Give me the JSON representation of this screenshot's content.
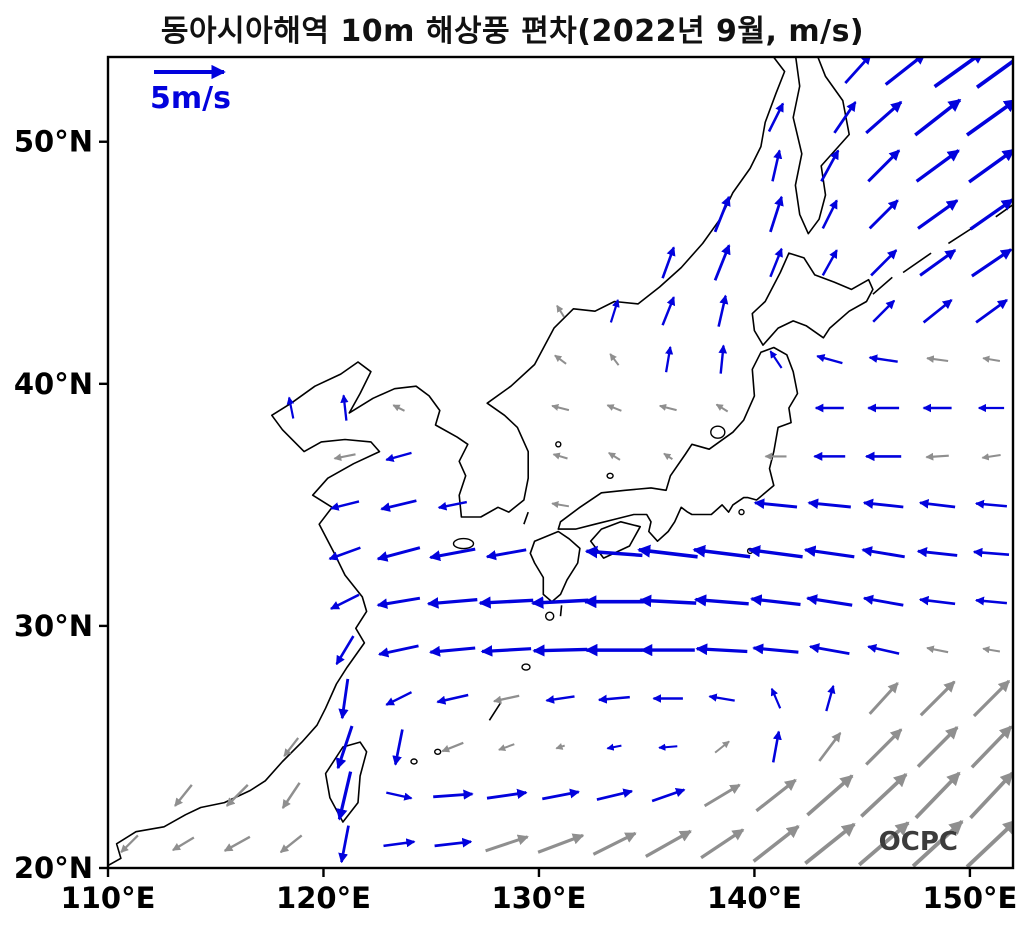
{
  "title": "동아시아해역 10m 해상풍 편차(2022년 9월, m/s)",
  "watermark": "OCPC",
  "legend": {
    "label": "5m/s",
    "speed_m_s": 5
  },
  "axes": {
    "lon_range": [
      110,
      152
    ],
    "lat_range": [
      20,
      53.5
    ],
    "x_ticks": [
      {
        "lon": 110,
        "label": "110°E"
      },
      {
        "lon": 120,
        "label": "120°E"
      },
      {
        "lon": 130,
        "label": "130°E"
      },
      {
        "lon": 140,
        "label": "140°E"
      },
      {
        "lon": 150,
        "label": "150°E"
      }
    ],
    "y_ticks": [
      {
        "lat": 20,
        "label": "20°N"
      },
      {
        "lat": 30,
        "label": "30°N"
      },
      {
        "lat": 40,
        "label": "40°N"
      },
      {
        "lat": 50,
        "label": "50°N"
      }
    ]
  },
  "chart_data": {
    "type": "quiver_map",
    "title": "동아시아해역 10m 해상풍 편차(2022년 9월, m/s)",
    "units": "m/s",
    "reference_speed": 5,
    "region": {
      "lon": [
        110,
        152
      ],
      "lat": [
        20,
        53.5
      ]
    },
    "colors": {
      "significant_blue": "#0202dd",
      "nonsignificant_gray": "#8f8f8f"
    },
    "vector_format": [
      "lon",
      "lat",
      "u_m_s",
      "v_m_s",
      "color(b=blue,g=gray)"
    ],
    "vectors": [
      [
        111,
        21,
        -1.2,
        -1.2,
        "g"
      ],
      [
        113.5,
        21,
        -1.5,
        -0.9,
        "g"
      ],
      [
        116,
        21,
        -1.8,
        -1.0,
        "g"
      ],
      [
        118.5,
        21,
        -1.5,
        -1.2,
        "g"
      ],
      [
        121,
        21,
        -0.5,
        -2.6,
        "b"
      ],
      [
        123.5,
        21,
        2.2,
        0.3,
        "b"
      ],
      [
        126,
        21,
        2.6,
        0.3,
        "b"
      ],
      [
        128.5,
        21,
        3.0,
        1.0,
        "g"
      ],
      [
        131,
        21,
        3.2,
        1.2,
        "g"
      ],
      [
        133.5,
        21,
        3.0,
        1.5,
        "g"
      ],
      [
        136,
        21,
        3.2,
        1.8,
        "g"
      ],
      [
        138.5,
        21,
        3.0,
        2.0,
        "g"
      ],
      [
        141,
        21,
        3.2,
        2.5,
        "g"
      ],
      [
        143.5,
        21,
        3.5,
        2.8,
        "g"
      ],
      [
        146,
        21,
        3.5,
        3.0,
        "g"
      ],
      [
        148.5,
        21,
        3.5,
        3.2,
        "g"
      ],
      [
        151,
        21,
        3.5,
        3.3,
        "g"
      ],
      [
        113.5,
        23,
        -1.2,
        -1.5,
        "g"
      ],
      [
        116,
        23,
        -1.5,
        -1.5,
        "g"
      ],
      [
        118.5,
        23,
        -1.2,
        -1.8,
        "g"
      ],
      [
        121,
        23,
        -0.8,
        -3.4,
        "b"
      ],
      [
        123.5,
        23,
        1.8,
        -0.4,
        "b"
      ],
      [
        126,
        23,
        2.8,
        0.2,
        "b"
      ],
      [
        128.5,
        23,
        2.8,
        0.4,
        "b"
      ],
      [
        131,
        23,
        2.6,
        0.5,
        "b"
      ],
      [
        133.5,
        23,
        2.5,
        0.6,
        "b"
      ],
      [
        136,
        23,
        2.3,
        0.8,
        "b"
      ],
      [
        138.5,
        23,
        2.5,
        1.5,
        "g"
      ],
      [
        141,
        23,
        2.8,
        2.2,
        "g"
      ],
      [
        143.5,
        23,
        3.2,
        2.8,
        "g"
      ],
      [
        146,
        23,
        3.2,
        3.0,
        "g"
      ],
      [
        148.5,
        23,
        3.1,
        3.2,
        "g"
      ],
      [
        151,
        23,
        3.0,
        3.2,
        "g"
      ],
      [
        118.5,
        25,
        -1.0,
        -1.3,
        "g"
      ],
      [
        121,
        25,
        -1.0,
        -3.0,
        "b"
      ],
      [
        123.5,
        25,
        -0.5,
        -2.5,
        "b"
      ],
      [
        126,
        25,
        -1.5,
        -0.6,
        "g"
      ],
      [
        128.5,
        25,
        -1.1,
        -0.4,
        "g"
      ],
      [
        131,
        25,
        -0.6,
        -0.2,
        "g"
      ],
      [
        133.5,
        25,
        -1.0,
        -0.2,
        "b"
      ],
      [
        136,
        25,
        -1.3,
        -0.1,
        "b"
      ],
      [
        138.5,
        25,
        1.0,
        0.8,
        "g"
      ],
      [
        141,
        25,
        0.4,
        2.2,
        "b"
      ],
      [
        143.5,
        25,
        1.5,
        2.0,
        "g"
      ],
      [
        146,
        25,
        2.5,
        2.5,
        "g"
      ],
      [
        148.5,
        25,
        2.8,
        2.8,
        "g"
      ],
      [
        151,
        25,
        2.8,
        2.9,
        "g"
      ],
      [
        121,
        27,
        -0.4,
        -2.8,
        "b"
      ],
      [
        123.5,
        27,
        -1.8,
        -0.9,
        "b"
      ],
      [
        126,
        27,
        -2.2,
        -0.5,
        "b"
      ],
      [
        128.5,
        27,
        -1.8,
        -0.4,
        "g"
      ],
      [
        131,
        27,
        -2.0,
        -0.3,
        "b"
      ],
      [
        133.5,
        27,
        -2.2,
        -0.2,
        "b"
      ],
      [
        136,
        27,
        -2.1,
        0.0,
        "b"
      ],
      [
        138.5,
        27,
        -1.8,
        0.3,
        "b"
      ],
      [
        141,
        27,
        -0.6,
        1.4,
        "b"
      ],
      [
        143.5,
        27,
        0.5,
        1.8,
        "b"
      ],
      [
        146,
        27,
        2.0,
        2.2,
        "g"
      ],
      [
        148.5,
        27,
        2.4,
        2.4,
        "g"
      ],
      [
        151,
        27,
        2.5,
        2.5,
        "g"
      ],
      [
        121,
        29,
        -1.2,
        -2.0,
        "b"
      ],
      [
        123.5,
        29,
        -2.8,
        -0.6,
        "b"
      ],
      [
        126,
        29,
        -3.2,
        -0.3,
        "b"
      ],
      [
        128.5,
        29,
        -3.5,
        -0.2,
        "b"
      ],
      [
        131,
        29,
        -3.8,
        -0.1,
        "b"
      ],
      [
        133.5,
        29,
        -4.0,
        0.0,
        "b"
      ],
      [
        136,
        29,
        -3.8,
        0.0,
        "b"
      ],
      [
        138.5,
        29,
        -3.6,
        0.2,
        "b"
      ],
      [
        141,
        29,
        -3.2,
        0.3,
        "b"
      ],
      [
        143.5,
        29,
        -2.8,
        0.5,
        "b"
      ],
      [
        146,
        29,
        -2.2,
        0.5,
        "b"
      ],
      [
        148.5,
        29,
        -1.5,
        0.3,
        "g"
      ],
      [
        151,
        29,
        -1.2,
        0.2,
        "g"
      ],
      [
        121,
        31,
        -2.0,
        -1.0,
        "b"
      ],
      [
        123.5,
        31,
        -3.0,
        -0.5,
        "b"
      ],
      [
        126,
        31,
        -3.5,
        -0.3,
        "b"
      ],
      [
        128.5,
        31,
        -3.8,
        -0.2,
        "b"
      ],
      [
        131,
        31,
        -4.0,
        -0.2,
        "b"
      ],
      [
        133.5,
        31,
        -4.2,
        0.0,
        "b"
      ],
      [
        136,
        31,
        -4.0,
        0.2,
        "b"
      ],
      [
        138.5,
        31,
        -3.8,
        0.3,
        "b"
      ],
      [
        141,
        31,
        -3.5,
        0.4,
        "b"
      ],
      [
        143.5,
        31,
        -3.2,
        0.5,
        "b"
      ],
      [
        146,
        31,
        -2.8,
        0.5,
        "b"
      ],
      [
        148.5,
        31,
        -2.5,
        0.3,
        "b"
      ],
      [
        151,
        31,
        -2.2,
        0.2,
        "b"
      ],
      [
        121,
        33,
        -2.2,
        -0.8,
        "b"
      ],
      [
        123.5,
        33,
        -3.0,
        -0.8,
        "b"
      ],
      [
        126,
        33,
        -3.2,
        -0.6,
        "b"
      ],
      [
        128.5,
        33,
        -2.8,
        -0.5,
        "b"
      ],
      [
        133.5,
        33,
        -4.0,
        0.3,
        "b"
      ],
      [
        136,
        33,
        -4.2,
        0.5,
        "b"
      ],
      [
        138.5,
        33,
        -4.0,
        0.5,
        "b"
      ],
      [
        141,
        33,
        -3.8,
        0.5,
        "b"
      ],
      [
        143.5,
        33,
        -3.5,
        0.5,
        "b"
      ],
      [
        146,
        33,
        -3.0,
        0.5,
        "b"
      ],
      [
        148.5,
        33,
        -2.8,
        0.3,
        "b"
      ],
      [
        151,
        33,
        -2.5,
        0.2,
        "b"
      ],
      [
        121,
        35,
        -2.0,
        -0.5,
        "b"
      ],
      [
        123.5,
        35,
        -2.5,
        -0.6,
        "b"
      ],
      [
        126,
        35,
        -2.0,
        -0.4,
        "b"
      ],
      [
        131,
        35,
        -1.2,
        0.2,
        "g"
      ],
      [
        141,
        35,
        -3.0,
        0.3,
        "b"
      ],
      [
        143.5,
        35,
        -3.0,
        0.3,
        "b"
      ],
      [
        146,
        35,
        -2.8,
        0.3,
        "b"
      ],
      [
        148.5,
        35,
        -2.5,
        0.3,
        "b"
      ],
      [
        151,
        35,
        -2.2,
        0.2,
        "b"
      ],
      [
        121,
        37,
        -1.5,
        -0.3,
        "g"
      ],
      [
        123.5,
        37,
        -1.8,
        -0.5,
        "b"
      ],
      [
        131,
        37,
        -1.0,
        0.3,
        "g"
      ],
      [
        133.5,
        37,
        -0.8,
        0.5,
        "g"
      ],
      [
        136,
        37,
        -0.6,
        0.4,
        "g"
      ],
      [
        141,
        37,
        -1.5,
        0.0,
        "g"
      ],
      [
        143.5,
        37,
        -2.2,
        0.0,
        "b"
      ],
      [
        146,
        37,
        -2.5,
        0.0,
        "b"
      ],
      [
        148.5,
        37,
        -1.6,
        -0.1,
        "g"
      ],
      [
        151,
        37,
        -1.3,
        -0.2,
        "g"
      ],
      [
        118.5,
        39,
        -0.3,
        1.5,
        "b"
      ],
      [
        121,
        39,
        -0.2,
        1.8,
        "b"
      ],
      [
        123.5,
        39,
        -0.8,
        0.4,
        "g"
      ],
      [
        131,
        39,
        -1.2,
        0.3,
        "g"
      ],
      [
        133.5,
        39,
        -1.0,
        0.4,
        "g"
      ],
      [
        136,
        39,
        -1.2,
        0.3,
        "g"
      ],
      [
        138.5,
        39,
        -0.8,
        0.5,
        "g"
      ],
      [
        143.5,
        39,
        -2.0,
        0.0,
        "b"
      ],
      [
        146,
        39,
        -2.2,
        0.0,
        "b"
      ],
      [
        148.5,
        39,
        -2.0,
        0.0,
        "b"
      ],
      [
        151,
        39,
        -1.8,
        0.0,
        "b"
      ],
      [
        131,
        41,
        -0.8,
        0.6,
        "g"
      ],
      [
        133.5,
        41,
        -0.6,
        0.8,
        "g"
      ],
      [
        136,
        41,
        0.3,
        1.8,
        "b"
      ],
      [
        138.5,
        41,
        0.2,
        2.0,
        "b"
      ],
      [
        141,
        41,
        -0.8,
        1.2,
        "b"
      ],
      [
        143.5,
        41,
        -1.8,
        0.5,
        "b"
      ],
      [
        146,
        41,
        -2.0,
        0.3,
        "b"
      ],
      [
        148.5,
        41,
        -1.5,
        0.2,
        "g"
      ],
      [
        151,
        41,
        -1.2,
        0.2,
        "g"
      ],
      [
        131,
        43,
        -0.5,
        0.8,
        "g"
      ],
      [
        133.5,
        43,
        0.5,
        1.6,
        "b"
      ],
      [
        136,
        43,
        0.8,
        2.0,
        "b"
      ],
      [
        138.5,
        43,
        0.5,
        2.2,
        "b"
      ],
      [
        146,
        43,
        1.5,
        1.5,
        "b"
      ],
      [
        148.5,
        43,
        2.0,
        1.6,
        "b"
      ],
      [
        151,
        43,
        2.2,
        1.6,
        "b"
      ],
      [
        136,
        45,
        0.8,
        2.2,
        "b"
      ],
      [
        138.5,
        45,
        1.0,
        2.5,
        "b"
      ],
      [
        141,
        45,
        0.8,
        2.0,
        "b"
      ],
      [
        143.5,
        45,
        1.0,
        1.8,
        "b"
      ],
      [
        146,
        45,
        1.8,
        1.8,
        "b"
      ],
      [
        148.5,
        45,
        2.5,
        1.8,
        "b"
      ],
      [
        151,
        45,
        2.8,
        1.9,
        "b"
      ],
      [
        138.5,
        47,
        1.0,
        2.5,
        "b"
      ],
      [
        141,
        47,
        0.8,
        2.5,
        "b"
      ],
      [
        143.5,
        47,
        1.0,
        2.0,
        "b"
      ],
      [
        146,
        47,
        2.0,
        2.0,
        "b"
      ],
      [
        148.5,
        47,
        2.8,
        2.0,
        "b"
      ],
      [
        151,
        47,
        3.0,
        2.1,
        "b"
      ],
      [
        141,
        49,
        0.5,
        2.2,
        "b"
      ],
      [
        143.5,
        49,
        1.2,
        2.2,
        "b"
      ],
      [
        146,
        49,
        2.2,
        2.2,
        "b"
      ],
      [
        148.5,
        49,
        3.0,
        2.2,
        "b"
      ],
      [
        151,
        49,
        3.2,
        2.3,
        "b"
      ],
      [
        141,
        51,
        1.0,
        2.0,
        "b"
      ],
      [
        144.2,
        51,
        1.5,
        2.2,
        "b"
      ],
      [
        146,
        51,
        2.5,
        2.2,
        "b"
      ],
      [
        148.5,
        51,
        3.2,
        2.5,
        "b"
      ],
      [
        151,
        51,
        3.5,
        2.5,
        "b"
      ],
      [
        144.8,
        53,
        1.8,
        2.0,
        "b"
      ],
      [
        147,
        53,
        2.8,
        2.2,
        "b"
      ],
      [
        149.5,
        53,
        3.5,
        2.5,
        "b"
      ],
      [
        151.5,
        53,
        3.6,
        2.6,
        "b"
      ]
    ]
  }
}
